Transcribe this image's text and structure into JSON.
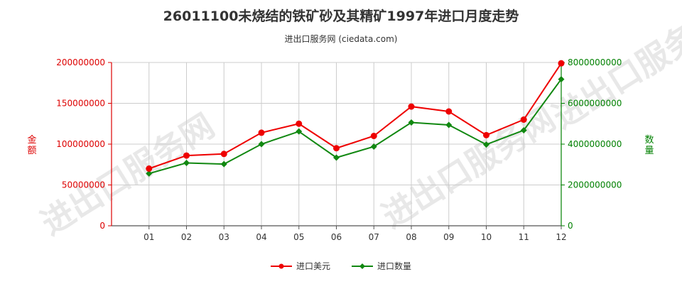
{
  "title": "26011100未烧结的铁矿砂及其精矿1997年进口月度走势",
  "subtitle": "进出口服务网 (ciedata.com)",
  "watermark": "进出口服务网",
  "colors": {
    "left_axis": "#dd0000",
    "right_axis": "#008000",
    "series_usd": "#ee0000",
    "series_qty": "#118811",
    "grid": "#cccccc"
  },
  "chart_data": {
    "type": "line",
    "categories": [
      "01",
      "02",
      "03",
      "04",
      "05",
      "06",
      "07",
      "08",
      "09",
      "10",
      "11",
      "12"
    ],
    "y_left": {
      "label": "金额",
      "ylim": [
        0,
        200000000
      ],
      "ticks": [
        "0",
        "50000000",
        "100000000",
        "150000000",
        "200000000"
      ]
    },
    "y_right": {
      "label": "数量",
      "ylim": [
        0,
        8000000000
      ],
      "ticks": [
        "0",
        "2000000000",
        "4000000000",
        "6000000000",
        "8000000000"
      ]
    },
    "grid": true,
    "legend_position": "bottom",
    "series": [
      {
        "name": "进口美元",
        "axis": "left",
        "marker": "circle",
        "values": [
          70000000,
          86000000,
          88000000,
          114000000,
          125000000,
          95000000,
          110000000,
          146000000,
          140000000,
          111000000,
          130000000,
          199000000
        ]
      },
      {
        "name": "进口数量",
        "axis": "right",
        "marker": "diamond",
        "values": [
          2560000000,
          3080000000,
          3020000000,
          4000000000,
          4620000000,
          3340000000,
          3880000000,
          5060000000,
          4940000000,
          3980000000,
          4680000000,
          7180000000
        ]
      }
    ]
  }
}
